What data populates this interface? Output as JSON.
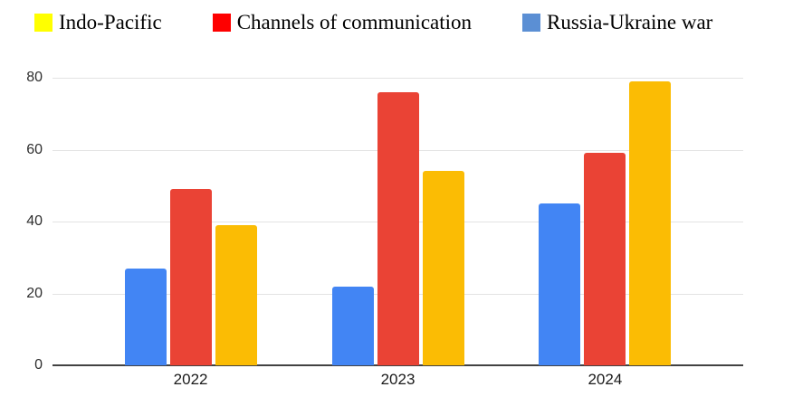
{
  "legend": {
    "items": [
      {
        "id": "indo-pacific",
        "label": "Indo-Pacific",
        "swatch_color": "#ffff00"
      },
      {
        "id": "channels-of-communication",
        "label": "Channels of communication",
        "swatch_color": "#fe0000"
      },
      {
        "id": "russia-ukraine-war",
        "label": "Russia-Ukraine war",
        "swatch_color": "#5b8fd4"
      }
    ]
  },
  "chart_data": {
    "type": "bar",
    "title": "",
    "xlabel": "",
    "ylabel": "",
    "categories": [
      "2022",
      "2023",
      "2024"
    ],
    "series": [
      {
        "name": "Russia-Ukraine war",
        "color": "#4285f4",
        "values": [
          27,
          22,
          45
        ]
      },
      {
        "name": "Channels of communication",
        "color": "#ea4335",
        "values": [
          49,
          76,
          59
        ]
      },
      {
        "name": "Indo-Pacific",
        "color": "#fbbc04",
        "values": [
          39,
          54,
          79
        ]
      }
    ],
    "ylim": [
      0,
      80
    ],
    "yticks": [
      0,
      20,
      40,
      60,
      80
    ],
    "grid": true,
    "legend_position": "top"
  },
  "colors": {
    "gridline": "#e3e3e3",
    "baseline": "#424242",
    "y_tick_label": "#2e2e2e",
    "x_tick_label": "#1a1a1a"
  }
}
